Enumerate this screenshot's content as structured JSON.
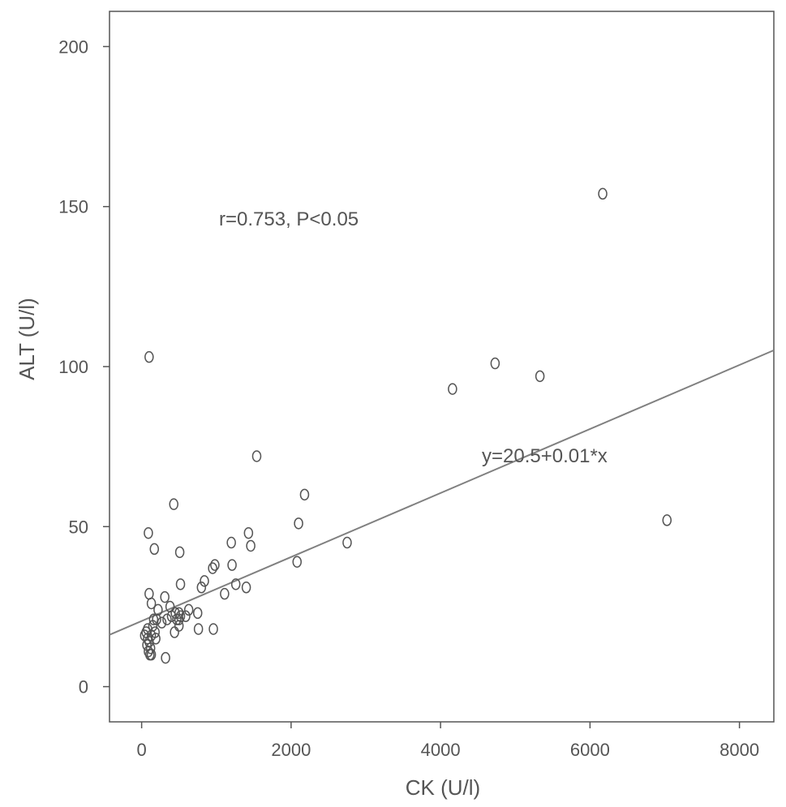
{
  "chart_data": {
    "type": "scatter",
    "title": "",
    "xlabel": "CK (U/l)",
    "ylabel": "ALT (U/l)",
    "xlim": [
      -430,
      8460
    ],
    "ylim": [
      -11,
      211
    ],
    "x_ticks": [
      0,
      2000,
      4000,
      6000,
      8000
    ],
    "y_ticks": [
      0,
      50,
      100,
      150,
      200
    ],
    "x_tick_labels": [
      "0",
      "2000",
      "4000",
      "6000",
      "8000"
    ],
    "y_tick_labels": [
      "0",
      "50",
      "100",
      "150",
      "200"
    ],
    "grid": false,
    "legend": "none",
    "annotations": {
      "correlation": "r=0.753, P<0.05",
      "equation": "y=20.5+0.01*x"
    },
    "fit_line": {
      "intercept": 20.5,
      "slope": 0.01
    },
    "colors": {
      "axis": "#555555",
      "points": "#555555",
      "line": "#808080"
    },
    "points": [
      [
        6170,
        154
      ],
      [
        4730,
        101
      ],
      [
        5330,
        97
      ],
      [
        4160,
        93
      ],
      [
        7030,
        52
      ],
      [
        2750,
        45
      ],
      [
        1540,
        72
      ],
      [
        2180,
        60
      ],
      [
        2100,
        51
      ],
      [
        2080,
        39
      ],
      [
        100,
        103
      ],
      [
        430,
        57
      ],
      [
        90,
        48
      ],
      [
        170,
        43
      ],
      [
        510,
        42
      ],
      [
        1200,
        45
      ],
      [
        1430,
        48
      ],
      [
        1460,
        44
      ],
      [
        1210,
        38
      ],
      [
        980,
        38
      ],
      [
        950,
        37
      ],
      [
        520,
        32
      ],
      [
        840,
        33
      ],
      [
        800,
        31
      ],
      [
        1260,
        32
      ],
      [
        1400,
        31
      ],
      [
        1110,
        29
      ],
      [
        100,
        29
      ],
      [
        130,
        26
      ],
      [
        310,
        28
      ],
      [
        380,
        25
      ],
      [
        630,
        24
      ],
      [
        590,
        22
      ],
      [
        220,
        24
      ],
      [
        270,
        20
      ],
      [
        400,
        22
      ],
      [
        450,
        23
      ],
      [
        500,
        23
      ],
      [
        470,
        21
      ],
      [
        440,
        17
      ],
      [
        500,
        19
      ],
      [
        500,
        21
      ],
      [
        520,
        22
      ],
      [
        750,
        23
      ],
      [
        760,
        18
      ],
      [
        960,
        18
      ],
      [
        340,
        21
      ],
      [
        200,
        21
      ],
      [
        160,
        21
      ],
      [
        150,
        19
      ],
      [
        180,
        17
      ],
      [
        190,
        15
      ],
      [
        130,
        16
      ],
      [
        80,
        18
      ],
      [
        60,
        17
      ],
      [
        40,
        16
      ],
      [
        100,
        14
      ],
      [
        70,
        13
      ],
      [
        120,
        12
      ],
      [
        90,
        11
      ],
      [
        110,
        10
      ],
      [
        130,
        10
      ],
      [
        80,
        15
      ],
      [
        320,
        9
      ]
    ]
  }
}
